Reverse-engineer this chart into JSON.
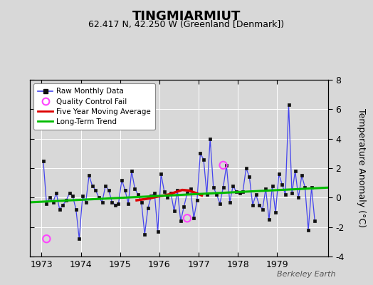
{
  "title": "TINGMIARMIUT",
  "subtitle": "62.417 N, 42.250 W (Greenland [Denmark])",
  "ylabel": "Temperature Anomaly (°C)",
  "watermark": "Berkeley Earth",
  "ylim": [
    -4,
    8
  ],
  "yticks": [
    -4,
    -2,
    0,
    2,
    4,
    6,
    8
  ],
  "xlim": [
    1972.7,
    1980.3
  ],
  "bg_color": "#d8d8d8",
  "plot_bg_color": "#d8d8d8",
  "raw_data": {
    "x": [
      1973.042,
      1973.125,
      1973.208,
      1973.292,
      1973.375,
      1973.458,
      1973.542,
      1973.625,
      1973.708,
      1973.792,
      1973.875,
      1973.958,
      1974.042,
      1974.125,
      1974.208,
      1974.292,
      1974.375,
      1974.458,
      1974.542,
      1974.625,
      1974.708,
      1974.792,
      1974.875,
      1974.958,
      1975.042,
      1975.125,
      1975.208,
      1975.292,
      1975.375,
      1975.458,
      1975.542,
      1975.625,
      1975.708,
      1975.792,
      1975.875,
      1975.958,
      1976.042,
      1976.125,
      1976.208,
      1976.292,
      1976.375,
      1976.458,
      1976.542,
      1976.625,
      1976.708,
      1976.792,
      1976.875,
      1976.958,
      1977.042,
      1977.125,
      1977.208,
      1977.292,
      1977.375,
      1977.458,
      1977.542,
      1977.625,
      1977.708,
      1977.792,
      1977.875,
      1977.958,
      1978.042,
      1978.125,
      1978.208,
      1978.292,
      1978.375,
      1978.458,
      1978.542,
      1978.625,
      1978.708,
      1978.792,
      1978.875,
      1978.958,
      1979.042,
      1979.125,
      1979.208,
      1979.292,
      1979.375,
      1979.458,
      1979.542,
      1979.625,
      1979.708,
      1979.792,
      1979.875,
      1979.958
    ],
    "y": [
      2.5,
      -0.4,
      0.0,
      -0.3,
      0.3,
      -0.8,
      -0.5,
      -0.2,
      0.3,
      0.1,
      -0.8,
      -2.8,
      0.1,
      -0.3,
      1.5,
      0.8,
      0.5,
      0.0,
      -0.3,
      0.8,
      0.5,
      -0.3,
      -0.5,
      -0.4,
      1.2,
      0.5,
      -0.4,
      1.8,
      0.6,
      0.2,
      -0.3,
      -2.5,
      -0.7,
      0.1,
      0.3,
      -2.3,
      1.6,
      0.4,
      0.0,
      0.3,
      -0.9,
      0.5,
      -1.6,
      -0.6,
      0.3,
      0.6,
      -1.4,
      -0.2,
      3.0,
      2.6,
      0.2,
      4.0,
      0.7,
      0.2,
      -0.4,
      0.7,
      2.2,
      -0.3,
      0.8,
      0.4,
      0.3,
      0.4,
      2.0,
      1.4,
      -0.5,
      0.2,
      -0.5,
      -0.8,
      0.6,
      -1.5,
      0.8,
      -1.0,
      1.6,
      0.9,
      0.2,
      6.3,
      0.3,
      1.8,
      0.0,
      1.5,
      0.7,
      -2.2,
      0.7,
      -1.6
    ]
  },
  "qc_fail": {
    "x": [
      1973.125,
      1976.708,
      1977.625
    ],
    "y": [
      -2.8,
      -1.4,
      2.2
    ]
  },
  "moving_avg": {
    "x": [
      1975.42,
      1975.58,
      1975.75,
      1975.92,
      1976.08,
      1976.25,
      1976.42,
      1976.58,
      1976.75,
      1976.92,
      1977.08
    ],
    "y": [
      -0.18,
      -0.12,
      -0.05,
      0.05,
      0.12,
      0.22,
      0.38,
      0.52,
      0.48,
      0.32,
      0.15
    ]
  },
  "trend": {
    "x": [
      1972.7,
      1980.3
    ],
    "y": [
      -0.32,
      0.68
    ]
  },
  "line_color": "#4444ee",
  "marker_color": "#111111",
  "qc_color": "#ff44ff",
  "moving_avg_color": "#dd0000",
  "trend_color": "#00bb00",
  "xtick_positions": [
    1973,
    1974,
    1975,
    1976,
    1977,
    1978,
    1979
  ],
  "legend_labels": [
    "Raw Monthly Data",
    "Quality Control Fail",
    "Five Year Moving Average",
    "Long-Term Trend"
  ]
}
